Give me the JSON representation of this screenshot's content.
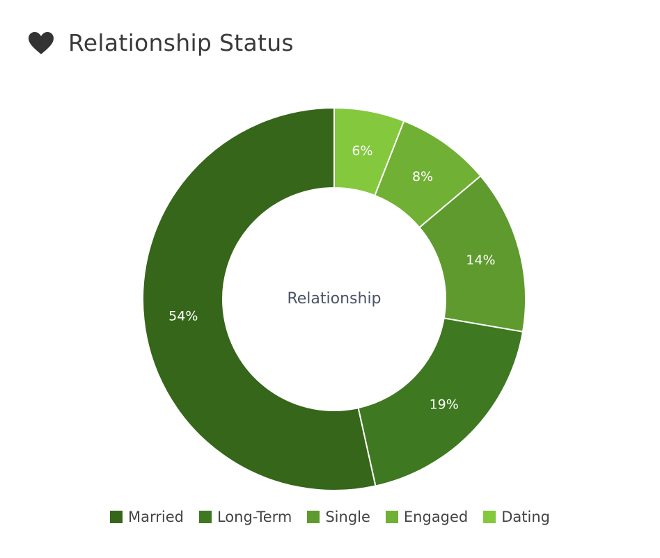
{
  "header": {
    "title": "Relationship Status",
    "icon": "heart-icon"
  },
  "chart_data": {
    "type": "pie",
    "variant": "donut",
    "center_label": "Relationship",
    "categories": [
      "Married",
      "Long-Term",
      "Single",
      "Engaged",
      "Dating"
    ],
    "values": [
      54,
      19,
      14,
      8,
      6
    ],
    "value_labels": [
      "54%",
      "19%",
      "14%",
      "8%",
      "6%"
    ],
    "colors": [
      "#36661a",
      "#3e7820",
      "#5e9a2e",
      "#70b034",
      "#84c83e"
    ],
    "legend_position": "bottom"
  }
}
